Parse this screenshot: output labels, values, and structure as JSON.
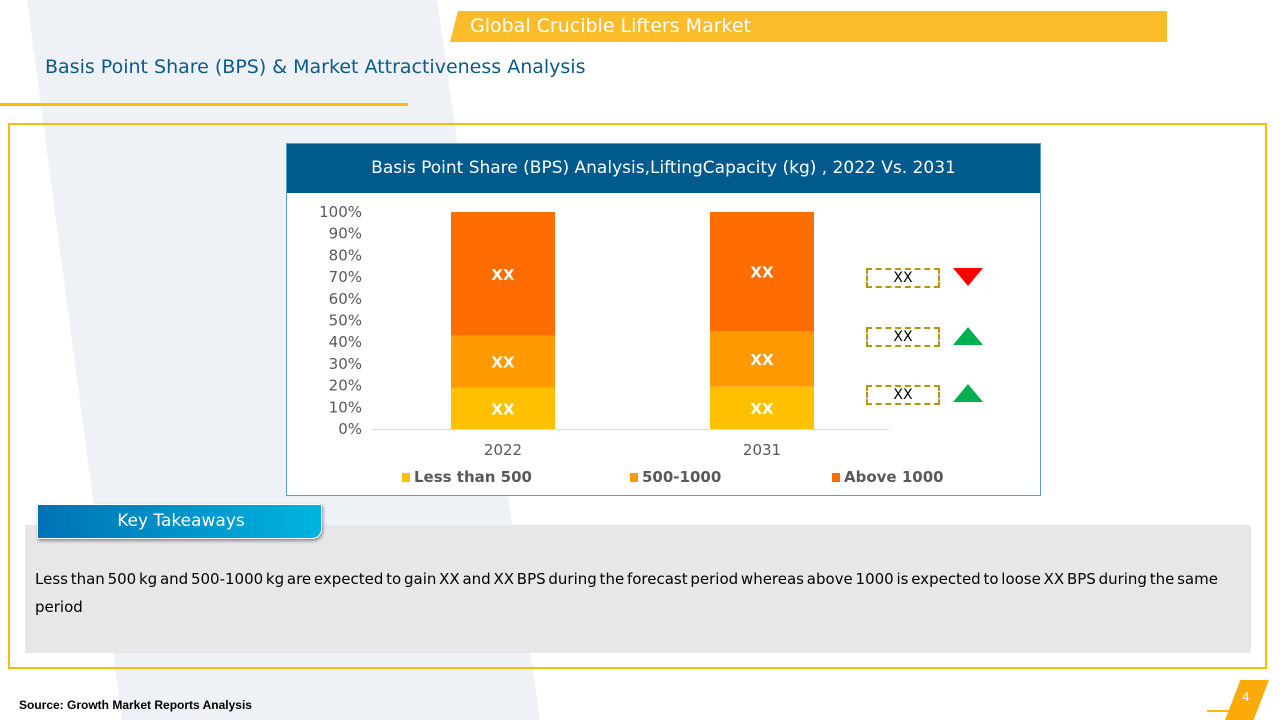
{
  "header": {
    "market_title": "Global Crucible Lifters Market",
    "page_title": "Basis Point Share (BPS) & Market Attractiveness Analysis"
  },
  "chart_data": {
    "type": "bar",
    "stacked": true,
    "title": "Basis Point Share (BPS) Analysis, Lifting Capacity (kg) , 2022 Vs. 2031",
    "title_rendered": "Basis Point Share (BPS) Analysis,LiftingCapacity (kg) , 2022 Vs. 2031",
    "categories": [
      "2022",
      "2031"
    ],
    "series": [
      {
        "name": "Less than 500",
        "color": "#ffc000",
        "values": [
          19,
          19.5
        ],
        "labels": [
          "XX",
          "XX"
        ]
      },
      {
        "name": "500-1000",
        "color": "#ff9900",
        "values": [
          24,
          25.5
        ],
        "labels": [
          "XX",
          "XX"
        ]
      },
      {
        "name": "Above 1000",
        "color": "#ff6d00",
        "values": [
          57,
          55
        ],
        "labels": [
          "XX",
          "XX"
        ]
      }
    ],
    "yticks": [
      "0%",
      "10%",
      "20%",
      "30%",
      "40%",
      "50%",
      "60%",
      "70%",
      "80%",
      "90%",
      "100%"
    ],
    "ylim": [
      0,
      100
    ],
    "xlabel": "",
    "ylabel": "",
    "grid": false,
    "legend_position": "bottom",
    "bps_callouts": [
      {
        "series": "Above 1000",
        "label": "XX",
        "trend": "down",
        "color": "#ff0000"
      },
      {
        "series": "500-1000",
        "label": "XX",
        "trend": "up",
        "color": "#00b050"
      },
      {
        "series": "Less than 500",
        "label": "XX",
        "trend": "up",
        "color": "#00b050"
      }
    ]
  },
  "takeaways": {
    "label": "Key Takeaways",
    "text": "Less than 500 kg and 500-1000 kg are expected to gain XX and XX BPS during the forecast period whereas above 1000 is expected to loose XX BPS during the same period"
  },
  "footer": {
    "source": "Source: Growth Market Reports Analysis",
    "page_number": "4"
  }
}
